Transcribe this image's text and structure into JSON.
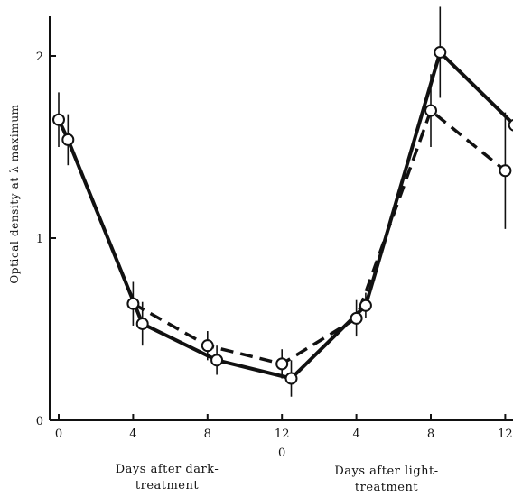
{
  "chart_data": {
    "type": "line",
    "ylabel": "Optical density at λ maximum",
    "ylim": [
      0,
      2.25
    ],
    "y_ticks": [
      "0",
      "1",
      "2"
    ],
    "x_ticks_dark": [
      "0",
      "4",
      "8",
      "12"
    ],
    "x_ticks_light": [
      "0",
      "4",
      "8",
      "12"
    ],
    "xlabel_dark": [
      "Days after dark-",
      "treatment"
    ],
    "xlabel_light": [
      "Days after light-",
      "treatment"
    ],
    "grid": false,
    "series": [
      {
        "style": "solid",
        "points": [
          {
            "x": 0,
            "y": 1.65,
            "err": 0.15
          },
          {
            "x": 0.5,
            "y": 1.54,
            "err": 0.14
          },
          {
            "x": 4.5,
            "y": 0.53,
            "err": 0.12
          },
          {
            "x": 8.5,
            "y": 0.33,
            "err": 0.08
          },
          {
            "x": 12.5,
            "y": 0.23,
            "err": 0.1
          },
          {
            "x": 16.5,
            "y": 0.63,
            "err": 0.07
          },
          {
            "x": 20.5,
            "y": 2.02,
            "err": 0.25
          },
          {
            "x": 24.5,
            "y": 1.62,
            "err": 0.0
          }
        ]
      },
      {
        "style": "dashed",
        "points": [
          {
            "x": 4,
            "y": 0.64,
            "err": 0.12
          },
          {
            "x": 8,
            "y": 0.41,
            "err": 0.08
          },
          {
            "x": 12,
            "y": 0.31,
            "err": 0.08
          },
          {
            "x": 16,
            "y": 0.56,
            "err": 0.1
          },
          {
            "x": 20,
            "y": 1.7,
            "err": 0.2
          },
          {
            "x": 24,
            "y": 1.37,
            "err": 0.32
          }
        ]
      }
    ]
  }
}
